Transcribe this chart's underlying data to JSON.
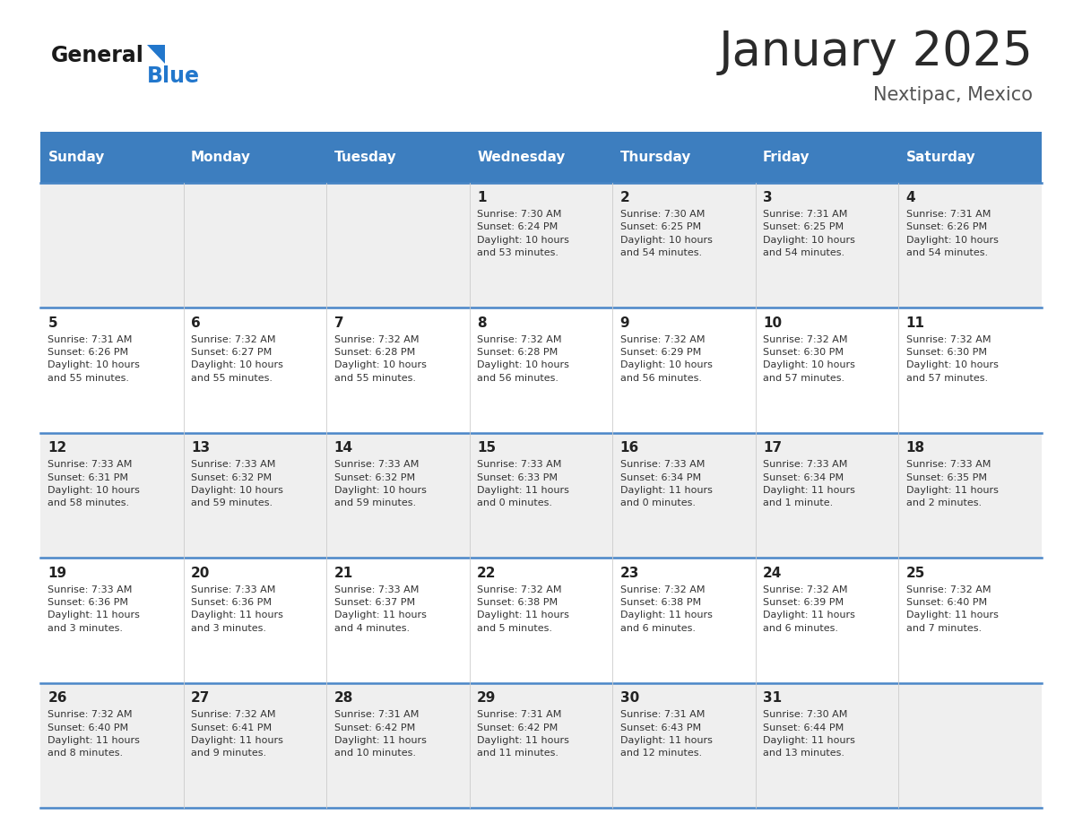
{
  "title": "January 2025",
  "subtitle": "Nextipac, Mexico",
  "header_color": "#3d7ebf",
  "header_text_color": "#ffffff",
  "days_of_week": [
    "Sunday",
    "Monday",
    "Tuesday",
    "Wednesday",
    "Thursday",
    "Friday",
    "Saturday"
  ],
  "bg_color": "#ffffff",
  "row_bg_colors": [
    "#efefef",
    "#ffffff",
    "#efefef",
    "#ffffff",
    "#efefef"
  ],
  "row_separator_color": "#4a86c8",
  "grid_color": "#cccccc",
  "day_num_color": "#222222",
  "info_color": "#333333",
  "title_color": "#2a2a2a",
  "subtitle_color": "#555555",
  "logo_general_color": "#1a1a1a",
  "logo_blue_color": "#2277cc",
  "weeks": [
    [
      {
        "day": null,
        "info": ""
      },
      {
        "day": null,
        "info": ""
      },
      {
        "day": null,
        "info": ""
      },
      {
        "day": 1,
        "info": "Sunrise: 7:30 AM\nSunset: 6:24 PM\nDaylight: 10 hours\nand 53 minutes."
      },
      {
        "day": 2,
        "info": "Sunrise: 7:30 AM\nSunset: 6:25 PM\nDaylight: 10 hours\nand 54 minutes."
      },
      {
        "day": 3,
        "info": "Sunrise: 7:31 AM\nSunset: 6:25 PM\nDaylight: 10 hours\nand 54 minutes."
      },
      {
        "day": 4,
        "info": "Sunrise: 7:31 AM\nSunset: 6:26 PM\nDaylight: 10 hours\nand 54 minutes."
      }
    ],
    [
      {
        "day": 5,
        "info": "Sunrise: 7:31 AM\nSunset: 6:26 PM\nDaylight: 10 hours\nand 55 minutes."
      },
      {
        "day": 6,
        "info": "Sunrise: 7:32 AM\nSunset: 6:27 PM\nDaylight: 10 hours\nand 55 minutes."
      },
      {
        "day": 7,
        "info": "Sunrise: 7:32 AM\nSunset: 6:28 PM\nDaylight: 10 hours\nand 55 minutes."
      },
      {
        "day": 8,
        "info": "Sunrise: 7:32 AM\nSunset: 6:28 PM\nDaylight: 10 hours\nand 56 minutes."
      },
      {
        "day": 9,
        "info": "Sunrise: 7:32 AM\nSunset: 6:29 PM\nDaylight: 10 hours\nand 56 minutes."
      },
      {
        "day": 10,
        "info": "Sunrise: 7:32 AM\nSunset: 6:30 PM\nDaylight: 10 hours\nand 57 minutes."
      },
      {
        "day": 11,
        "info": "Sunrise: 7:32 AM\nSunset: 6:30 PM\nDaylight: 10 hours\nand 57 minutes."
      }
    ],
    [
      {
        "day": 12,
        "info": "Sunrise: 7:33 AM\nSunset: 6:31 PM\nDaylight: 10 hours\nand 58 minutes."
      },
      {
        "day": 13,
        "info": "Sunrise: 7:33 AM\nSunset: 6:32 PM\nDaylight: 10 hours\nand 59 minutes."
      },
      {
        "day": 14,
        "info": "Sunrise: 7:33 AM\nSunset: 6:32 PM\nDaylight: 10 hours\nand 59 minutes."
      },
      {
        "day": 15,
        "info": "Sunrise: 7:33 AM\nSunset: 6:33 PM\nDaylight: 11 hours\nand 0 minutes."
      },
      {
        "day": 16,
        "info": "Sunrise: 7:33 AM\nSunset: 6:34 PM\nDaylight: 11 hours\nand 0 minutes."
      },
      {
        "day": 17,
        "info": "Sunrise: 7:33 AM\nSunset: 6:34 PM\nDaylight: 11 hours\nand 1 minute."
      },
      {
        "day": 18,
        "info": "Sunrise: 7:33 AM\nSunset: 6:35 PM\nDaylight: 11 hours\nand 2 minutes."
      }
    ],
    [
      {
        "day": 19,
        "info": "Sunrise: 7:33 AM\nSunset: 6:36 PM\nDaylight: 11 hours\nand 3 minutes."
      },
      {
        "day": 20,
        "info": "Sunrise: 7:33 AM\nSunset: 6:36 PM\nDaylight: 11 hours\nand 3 minutes."
      },
      {
        "day": 21,
        "info": "Sunrise: 7:33 AM\nSunset: 6:37 PM\nDaylight: 11 hours\nand 4 minutes."
      },
      {
        "day": 22,
        "info": "Sunrise: 7:32 AM\nSunset: 6:38 PM\nDaylight: 11 hours\nand 5 minutes."
      },
      {
        "day": 23,
        "info": "Sunrise: 7:32 AM\nSunset: 6:38 PM\nDaylight: 11 hours\nand 6 minutes."
      },
      {
        "day": 24,
        "info": "Sunrise: 7:32 AM\nSunset: 6:39 PM\nDaylight: 11 hours\nand 6 minutes."
      },
      {
        "day": 25,
        "info": "Sunrise: 7:32 AM\nSunset: 6:40 PM\nDaylight: 11 hours\nand 7 minutes."
      }
    ],
    [
      {
        "day": 26,
        "info": "Sunrise: 7:32 AM\nSunset: 6:40 PM\nDaylight: 11 hours\nand 8 minutes."
      },
      {
        "day": 27,
        "info": "Sunrise: 7:32 AM\nSunset: 6:41 PM\nDaylight: 11 hours\nand 9 minutes."
      },
      {
        "day": 28,
        "info": "Sunrise: 7:31 AM\nSunset: 6:42 PM\nDaylight: 11 hours\nand 10 minutes."
      },
      {
        "day": 29,
        "info": "Sunrise: 7:31 AM\nSunset: 6:42 PM\nDaylight: 11 hours\nand 11 minutes."
      },
      {
        "day": 30,
        "info": "Sunrise: 7:31 AM\nSunset: 6:43 PM\nDaylight: 11 hours\nand 12 minutes."
      },
      {
        "day": 31,
        "info": "Sunrise: 7:30 AM\nSunset: 6:44 PM\nDaylight: 11 hours\nand 13 minutes."
      },
      {
        "day": null,
        "info": ""
      }
    ]
  ]
}
